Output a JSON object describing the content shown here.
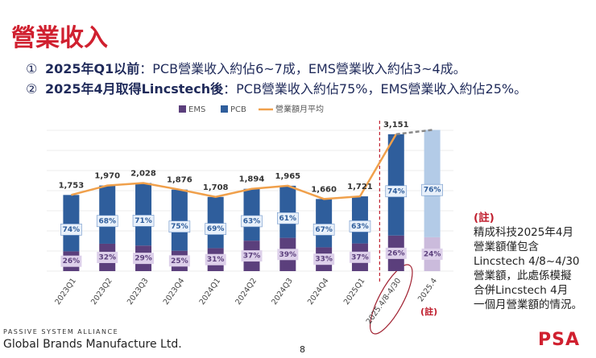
{
  "header": {
    "title": "營業收入"
  },
  "bullets": [
    {
      "marker": "①",
      "bold": "2025年Q1以前",
      "text": "：PCB營業收入約佔6~7成，EMS營業收入約佔3~4成。"
    },
    {
      "marker": "②",
      "bold": "2025年4月取得Lincstech後",
      "text": "：PCB營業收入約佔75%，EMS營業收入約佔25%。"
    }
  ],
  "chart_data": {
    "type": "bar",
    "categories": [
      "2023Q1",
      "2023Q2",
      "2023Q3",
      "2023Q4",
      "2024Q1",
      "2024Q2",
      "2024Q3",
      "2024Q4",
      "2025Q1",
      "2025.4/8-4/30",
      "2025.4"
    ],
    "series": [
      {
        "name": "EMS",
        "color": "#5b3f7c",
        "light_color": "#cbbbdc",
        "values": [
          26,
          32,
          29,
          25,
          31,
          37,
          39,
          33,
          37,
          26,
          24
        ],
        "value_labels": [
          "26%",
          "32%",
          "29%",
          "25%",
          "31%",
          "37%",
          "39%",
          "33%",
          "37%",
          "26%",
          "24%"
        ]
      },
      {
        "name": "PCB",
        "color": "#2f5e9c",
        "light_color": "#b3cbe7",
        "values": [
          74,
          68,
          71,
          75,
          69,
          63,
          61,
          67,
          63,
          74,
          76
        ],
        "value_labels": [
          "74%",
          "68%",
          "71%",
          "75%",
          "69%",
          "63%",
          "61%",
          "67%",
          "63%",
          "74%",
          "76%"
        ]
      },
      {
        "name": "營業額月平均",
        "type": "line",
        "color": "#f0a04b",
        "dash_color": "#888888",
        "values": [
          1753,
          1970,
          2028,
          1876,
          1708,
          1894,
          1965,
          1660,
          1721,
          3151,
          3250
        ],
        "value_labels": [
          "1,753",
          "1,970",
          "2,028",
          "1,876",
          "1,708",
          "1,894",
          "1,965",
          "1,660",
          "1,721",
          "3,151",
          null
        ]
      }
    ],
    "ylim": [
      0,
      3500
    ],
    "annotation": "(註)"
  },
  "note": {
    "heading": "(註)",
    "lines": [
      "精成科技2025年4月",
      "營業額僅包含",
      "Lincstech 4/8~4/30",
      "營業額，此處係模擬",
      "合併Lincstech 4月",
      "一個月營業額的情況。"
    ]
  },
  "footer": {
    "tagline": "PASSIVE SYSTEM ALLIANCE",
    "company": "Global Brands Manufacture Ltd.",
    "page": "8",
    "logo": "PSA"
  }
}
